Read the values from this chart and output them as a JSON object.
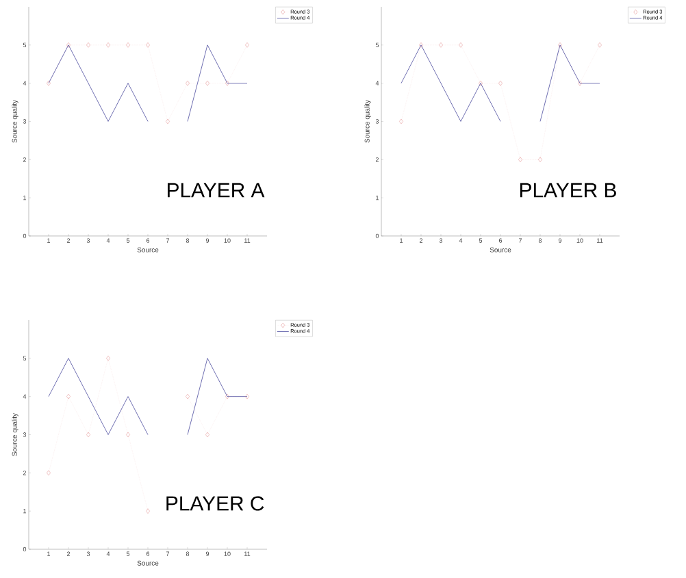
{
  "chart_data": [
    {
      "type": "line",
      "xlabel": "Source",
      "ylabel": "Source quality",
      "x": [
        1,
        2,
        3,
        4,
        5,
        6,
        7,
        8,
        9,
        10,
        11
      ],
      "xlim": [
        0,
        12
      ],
      "xticks": [
        1,
        2,
        3,
        4,
        5,
        6,
        7,
        8,
        9,
        10,
        11
      ],
      "ylim": [
        0,
        6
      ],
      "yticks": [
        0,
        1,
        2,
        3,
        4,
        5
      ],
      "legend": "top right",
      "annotations": [
        "PLAYER A"
      ],
      "series": [
        {
          "name": "Round 3",
          "color": "#d96a6a",
          "marker": "diamond",
          "line_style": "dotted",
          "values": [
            4,
            5,
            5,
            5,
            5,
            5,
            3,
            4,
            4,
            4,
            5
          ]
        },
        {
          "name": "Round 4",
          "color": "#4b4b9e",
          "marker": "none",
          "line_style": "solid",
          "values": [
            4,
            5,
            4,
            3,
            4,
            3,
            null,
            3,
            5,
            4,
            4
          ]
        }
      ]
    },
    {
      "type": "line",
      "xlabel": "Source",
      "ylabel": "Source quality",
      "x": [
        1,
        2,
        3,
        4,
        5,
        6,
        7,
        8,
        9,
        10,
        11
      ],
      "xlim": [
        0,
        12
      ],
      "xticks": [
        1,
        2,
        3,
        4,
        5,
        6,
        7,
        8,
        9,
        10,
        11
      ],
      "ylim": [
        0,
        6
      ],
      "yticks": [
        0,
        1,
        2,
        3,
        4,
        5
      ],
      "legend": "top right",
      "annotations": [
        "PLAYER B"
      ],
      "series": [
        {
          "name": "Round 3",
          "color": "#d96a6a",
          "marker": "diamond",
          "line_style": "dotted",
          "values": [
            3,
            5,
            5,
            5,
            4,
            4,
            2,
            2,
            5,
            4,
            5
          ]
        },
        {
          "name": "Round 4",
          "color": "#4b4b9e",
          "marker": "none",
          "line_style": "solid",
          "values": [
            4,
            5,
            4,
            3,
            4,
            3,
            null,
            3,
            5,
            4,
            4
          ]
        }
      ]
    },
    {
      "type": "line",
      "xlabel": "Source",
      "ylabel": "Source quality",
      "x": [
        1,
        2,
        3,
        4,
        5,
        6,
        7,
        8,
        9,
        10,
        11
      ],
      "xlim": [
        0,
        12
      ],
      "xticks": [
        1,
        2,
        3,
        4,
        5,
        6,
        7,
        8,
        9,
        10,
        11
      ],
      "ylim": [
        0,
        6
      ],
      "yticks": [
        0,
        1,
        2,
        3,
        4,
        5
      ],
      "legend": "top right",
      "annotations": [
        "PLAYER C"
      ],
      "series": [
        {
          "name": "Round 3",
          "color": "#d96a6a",
          "marker": "diamond",
          "line_style": "dotted",
          "values": [
            2,
            4,
            3,
            5,
            3,
            1,
            null,
            4,
            3,
            4,
            4
          ]
        },
        {
          "name": "Round 4",
          "color": "#4b4b9e",
          "marker": "none",
          "line_style": "solid",
          "values": [
            4,
            5,
            4,
            3,
            4,
            3,
            null,
            3,
            5,
            4,
            4
          ]
        }
      ]
    }
  ]
}
